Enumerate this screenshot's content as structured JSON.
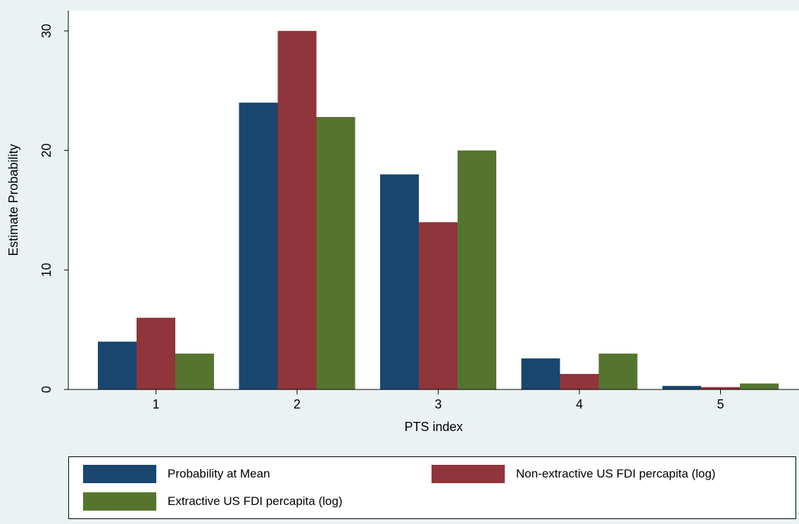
{
  "chart_data": {
    "type": "bar",
    "xlabel": "PTS index",
    "ylabel": "Estimate Probability",
    "categories": [
      "1",
      "2",
      "3",
      "4",
      "5"
    ],
    "ylim": [
      0,
      31
    ],
    "yticks": [
      "0",
      "10",
      "20",
      "30"
    ],
    "grid": false,
    "legend_position": "bottom",
    "series": [
      {
        "name": "Probability at Mean",
        "color": "#1a476f",
        "values": [
          4.0,
          24.0,
          18.0,
          2.6,
          0.3
        ]
      },
      {
        "name": "Non-extractive US FDI percapita (log)",
        "color": "#90353b",
        "values": [
          6.0,
          30.0,
          14.0,
          1.3,
          0.2
        ]
      },
      {
        "name": "Extractive US FDI percapita (log)",
        "color": "#55752f",
        "values": [
          3.0,
          22.8,
          20.0,
          3.0,
          0.5
        ]
      }
    ]
  }
}
